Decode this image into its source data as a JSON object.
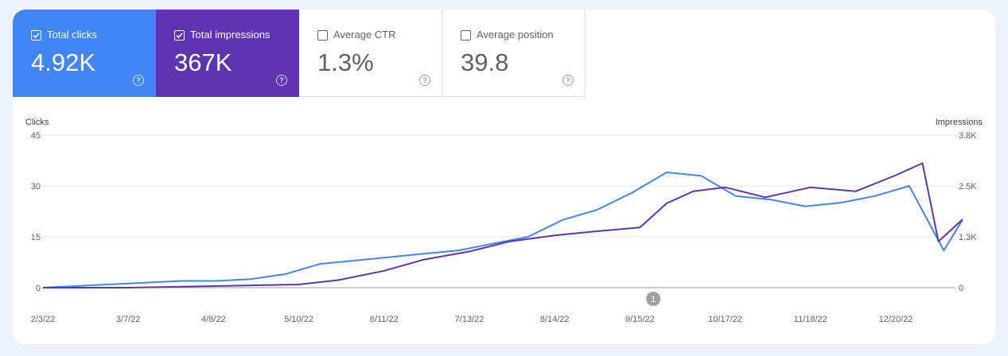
{
  "metrics": [
    {
      "label": "Total clicks",
      "value": "4.92K",
      "selected": true,
      "color": "#4285f4"
    },
    {
      "label": "Total impressions",
      "value": "367K",
      "selected": true,
      "color": "#5e35b1"
    },
    {
      "label": "Average CTR",
      "value": "1.3%",
      "selected": false,
      "color": "#ffffff"
    },
    {
      "label": "Average position",
      "value": "39.8",
      "selected": false,
      "color": "#ffffff"
    }
  ],
  "chart_data": {
    "type": "line",
    "left_axis_title": "Clicks",
    "right_axis_title": "Impressions",
    "left_ticks": [
      "45",
      "30",
      "15",
      "0"
    ],
    "right_ticks": [
      "3.8K",
      "2.5K",
      "1.3K",
      "0"
    ],
    "ylim_left": [
      0,
      45
    ],
    "ylim_right": [
      0,
      3800
    ],
    "x_tick_labels": [
      "2/3/22",
      "3/7/22",
      "4/8/22",
      "5/10/22",
      "6/11/22",
      "7/13/22",
      "8/14/22",
      "9/15/22",
      "10/17/22",
      "11/18/22",
      "12/20/22"
    ],
    "annotation": {
      "label": "1",
      "date": "9/20/22"
    },
    "grid": true,
    "series": [
      {
        "name": "Clicks",
        "axis": "left",
        "color": "#4285f4",
        "x": [
          "2/3/22",
          "2/16/22",
          "3/1/22",
          "3/14/22",
          "3/27/22",
          "4/9/22",
          "4/22/22",
          "5/5/22",
          "5/18/22",
          "5/31/22",
          "6/13/22",
          "6/26/22",
          "7/9/22",
          "7/22/22",
          "8/4/22",
          "8/17/22",
          "8/30/22",
          "9/12/22",
          "9/25/22",
          "10/8/22",
          "10/21/22",
          "11/3/22",
          "11/16/22",
          "11/29/22",
          "12/12/22",
          "12/25/22",
          "1/7/23",
          "1/14/23"
        ],
        "values": [
          0,
          0.5,
          1,
          1.5,
          2,
          2,
          2.5,
          4,
          7,
          8,
          9,
          10,
          11,
          13,
          15,
          20,
          23,
          28,
          34,
          33,
          27,
          26,
          24,
          25,
          27,
          30,
          11,
          20
        ]
      },
      {
        "name": "Impressions",
        "axis": "right",
        "color": "#5e35b1",
        "x": [
          "2/3/22",
          "3/7/22",
          "4/8/22",
          "5/10/22",
          "5/25/22",
          "6/11/22",
          "6/26/22",
          "7/13/22",
          "7/28/22",
          "8/14/22",
          "8/29/22",
          "9/15/22",
          "9/25/22",
          "10/5/22",
          "10/17/22",
          "11/1/22",
          "11/18/22",
          "12/5/22",
          "12/20/22",
          "12/30/22",
          "1/5/23",
          "1/14/23"
        ],
        "values": [
          0,
          0,
          40,
          80,
          190,
          420,
          700,
          900,
          1150,
          1300,
          1400,
          1500,
          2100,
          2400,
          2500,
          2250,
          2500,
          2400,
          2800,
          3100,
          1150,
          1700
        ]
      }
    ]
  }
}
